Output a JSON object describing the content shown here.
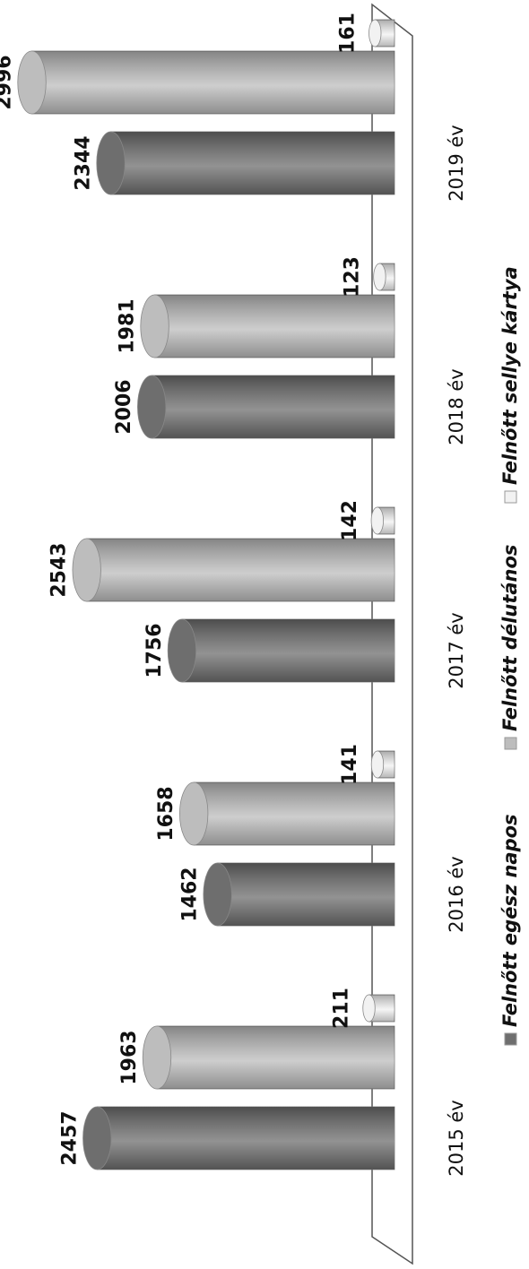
{
  "chart_data": {
    "type": "bar",
    "categories": [
      "2015 év",
      "2016 év",
      "2017 év",
      "2018 év",
      "2019 év"
    ],
    "series": [
      {
        "name": "Felnőtt egész napos",
        "color": "#6e6e6e",
        "values": [
          2457,
          1462,
          1756,
          2006,
          2344
        ]
      },
      {
        "name": "Felnőtt délutános",
        "color": "#bdbdbd",
        "values": [
          1963,
          1658,
          2543,
          1981,
          2996
        ]
      },
      {
        "name": "Felnőtt sellye kártya",
        "color": "#f2f2f2",
        "values": [
          211,
          141,
          142,
          123,
          161
        ]
      }
    ],
    "ylim": [
      0,
      3000
    ],
    "legend": "bottom"
  }
}
